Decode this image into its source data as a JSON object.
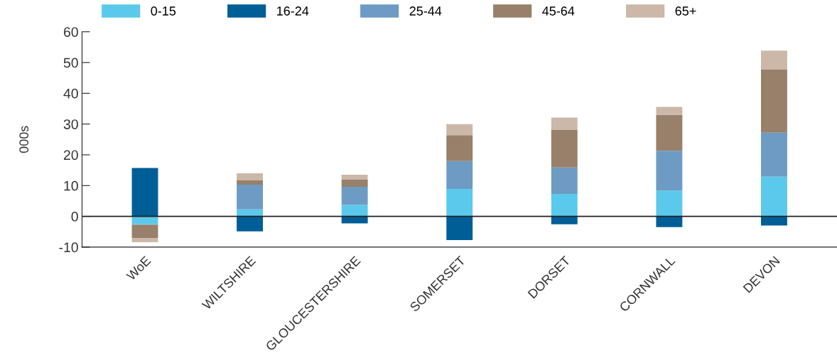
{
  "chart_data": {
    "type": "bar",
    "stacked": true,
    "ylabel": "000s",
    "categories": [
      "WoE",
      "WILTSHIRE",
      "GLOUCESTERSHIRE",
      "SOMERSET",
      "DORSET",
      "CORNWALL",
      "DEVON"
    ],
    "series": [
      {
        "name": "0-15",
        "color": "#5bc9eb",
        "values": [
          -2.5,
          2.3,
          3.7,
          8.9,
          7.3,
          8.4,
          12.9
        ]
      },
      {
        "name": "16-24",
        "color": "#005e96",
        "values": [
          15.7,
          -4.9,
          -2.3,
          -7.7,
          -2.6,
          -3.5,
          -3.0
        ]
      },
      {
        "name": "25-44",
        "color": "#6d9bc3",
        "values": [
          -0.3,
          8.0,
          5.9,
          9.1,
          8.6,
          12.9,
          14.3
        ]
      },
      {
        "name": "45-64",
        "color": "#98806a",
        "values": [
          -4.2,
          1.4,
          2.3,
          8.4,
          12.2,
          11.7,
          20.6
        ]
      },
      {
        "name": "65+",
        "color": "#cbb8a9",
        "values": [
          -1.4,
          2.3,
          1.6,
          3.6,
          4.0,
          2.6,
          6.1
        ]
      }
    ],
    "ylim": [
      -10,
      60
    ],
    "yticks": [
      -10,
      0,
      10,
      20,
      30,
      40,
      50,
      60
    ],
    "ref_lines": [
      {
        "axis": "y",
        "value": 0,
        "color": "#222222"
      }
    ],
    "grid": false,
    "legend": "top"
  }
}
